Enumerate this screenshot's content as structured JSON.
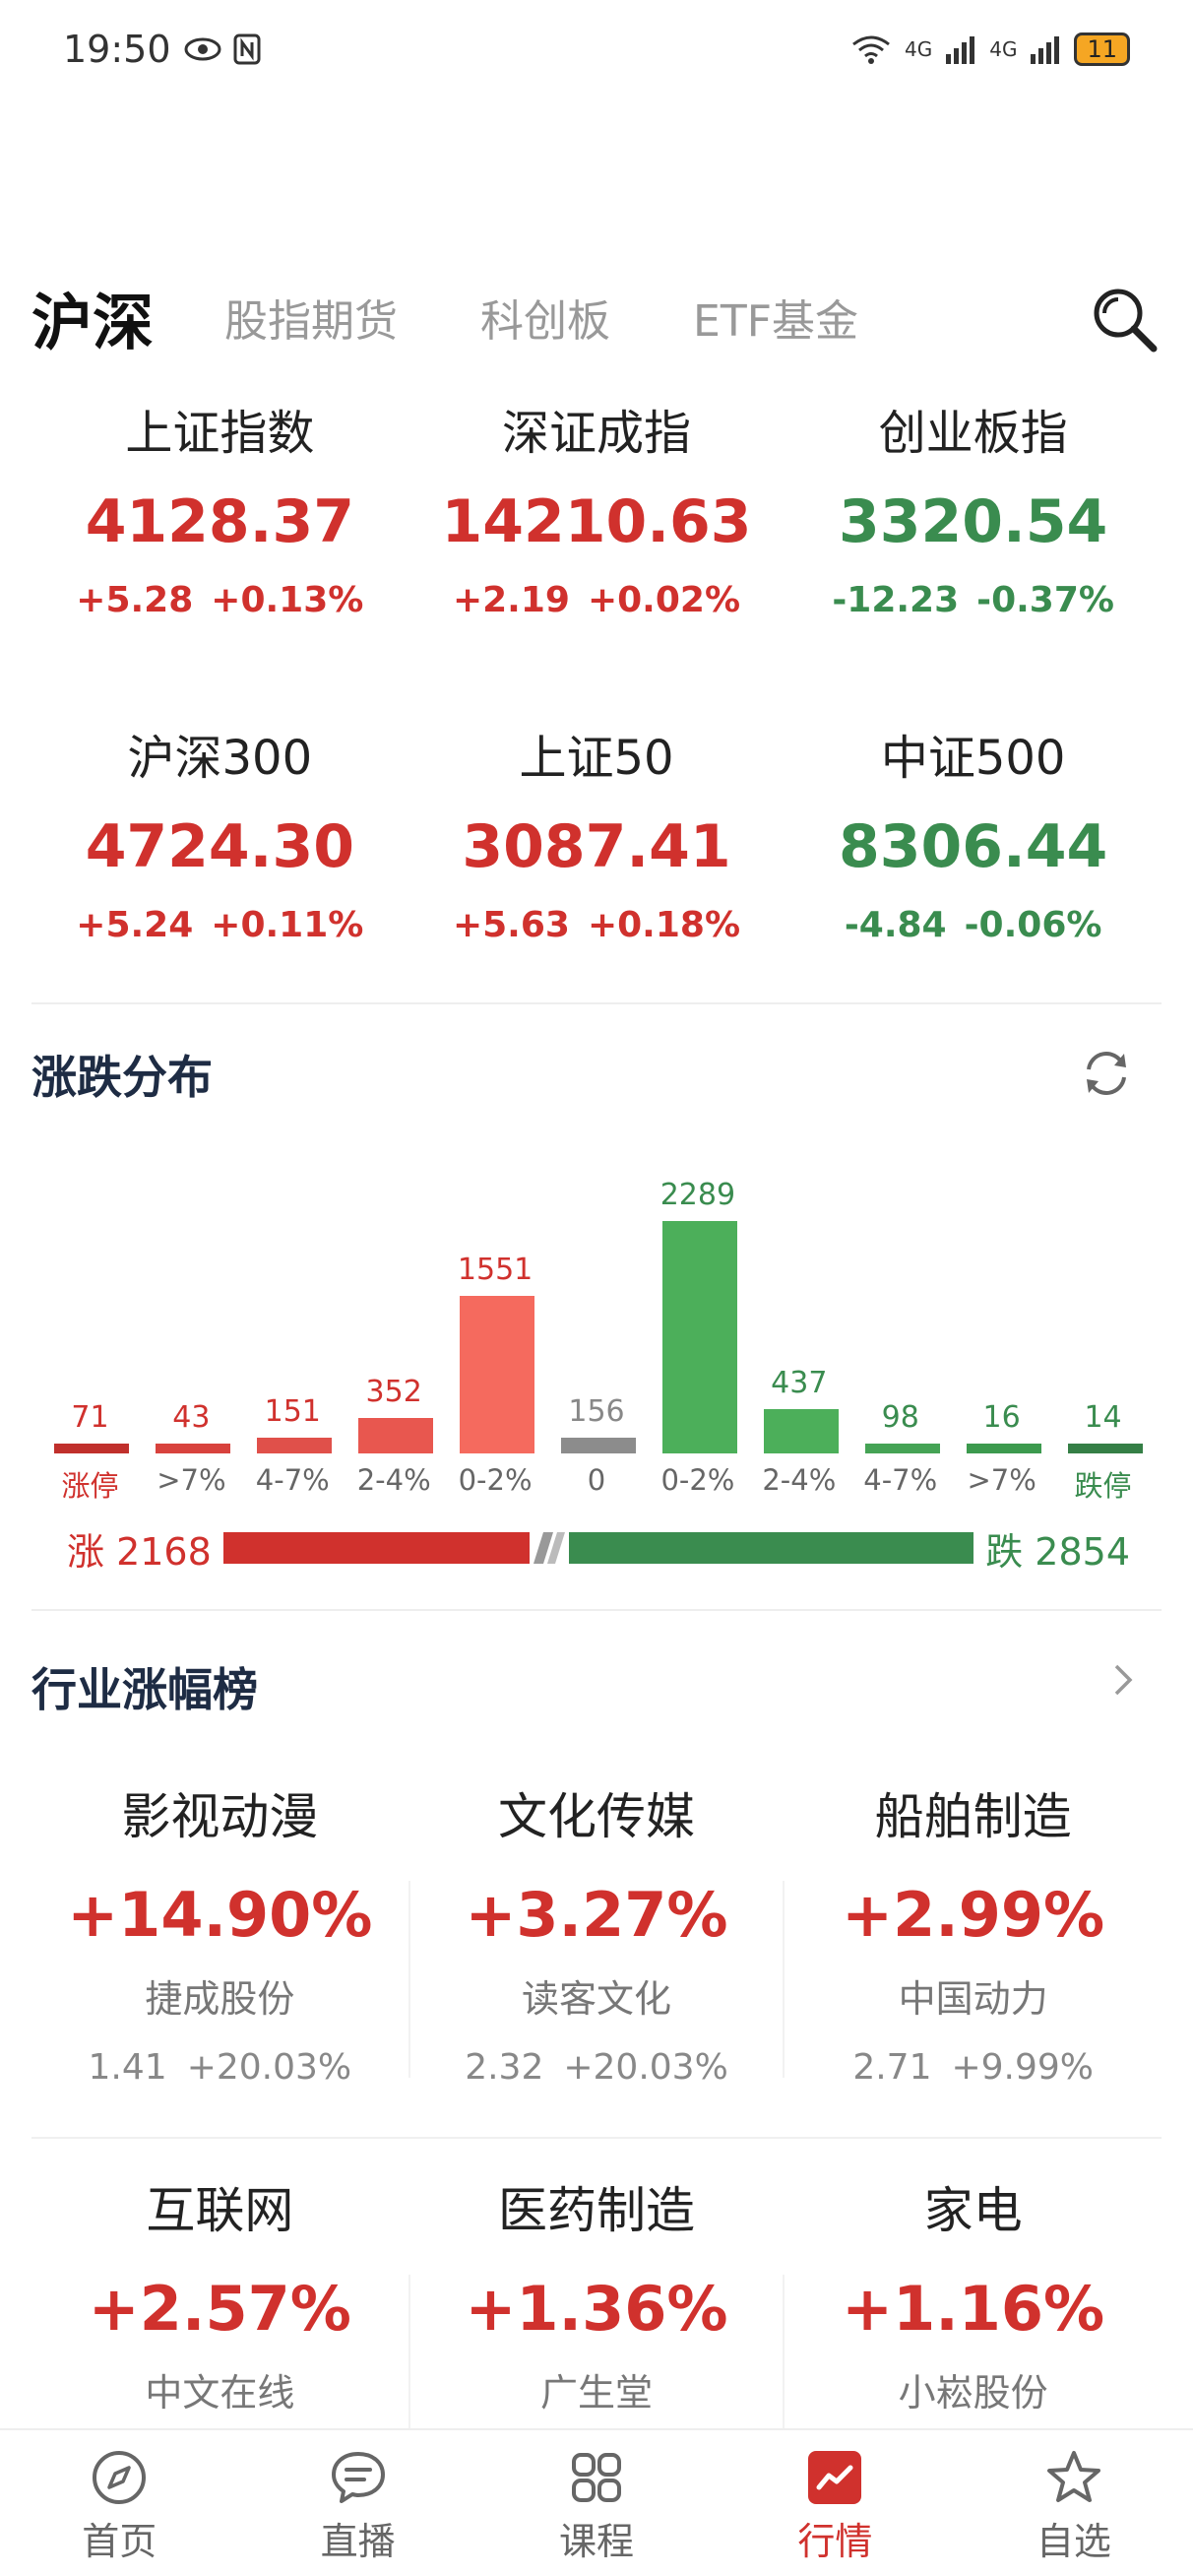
{
  "status_bar": {
    "time": "19:50",
    "network_1": "4G",
    "network_2": "4G",
    "battery": "11"
  },
  "tabs": [
    {
      "label": "沪深",
      "active": true
    },
    {
      "label": "股指期货",
      "active": false
    },
    {
      "label": "科创板",
      "active": false
    },
    {
      "label": "ETF基金",
      "active": false
    }
  ],
  "indices": [
    {
      "name": "上证指数",
      "value": "4128.37",
      "change": "+5.28",
      "pct": "+0.13%",
      "direction": "up"
    },
    {
      "name": "深证成指",
      "value": "14210.63",
      "change": "+2.19",
      "pct": "+0.02%",
      "direction": "up"
    },
    {
      "name": "创业板指",
      "value": "3320.54",
      "change": "-12.23",
      "pct": "-0.37%",
      "direction": "down"
    },
    {
      "name": "沪深300",
      "value": "4724.30",
      "change": "+5.24",
      "pct": "+0.11%",
      "direction": "up"
    },
    {
      "name": "上证50",
      "value": "3087.41",
      "change": "+5.63",
      "pct": "+0.18%",
      "direction": "up"
    },
    {
      "name": "中证500",
      "value": "8306.44",
      "change": "-4.84",
      "pct": "-0.06%",
      "direction": "down"
    }
  ],
  "distribution": {
    "title": "涨跌分布",
    "up_label": "涨 2168",
    "down_label": "跌 2854",
    "up_total": 2168,
    "down_total": 2854
  },
  "chart_data": {
    "type": "bar",
    "categories": [
      "涨停",
      ">7%",
      "4-7%",
      "2-4%",
      "0-2%",
      "0",
      "0-2%",
      "2-4%",
      "4-7%",
      ">7%",
      "跌停"
    ],
    "values": [
      71,
      43,
      151,
      352,
      1551,
      156,
      2289,
      437,
      98,
      16,
      14
    ],
    "bar_colors": [
      "#c0302c",
      "#d8423d",
      "#e0504a",
      "#e8574f",
      "#f56a5e",
      "#8c8c8c",
      "#4caf5a",
      "#4caf5a",
      "#45a355",
      "#3c9a4e",
      "#357f46"
    ],
    "value_colors": [
      "#d0312d",
      "#d0312d",
      "#d0312d",
      "#d0312d",
      "#d0312d",
      "#888888",
      "#3a8c4f",
      "#3a8c4f",
      "#3a8c4f",
      "#3a8c4f",
      "#3a8c4f"
    ],
    "label_colors": [
      "#d0312d",
      "#666666",
      "#666666",
      "#666666",
      "#666666",
      "#666666",
      "#666666",
      "#666666",
      "#666666",
      "#666666",
      "#3a8c4f"
    ],
    "title": "",
    "xlabel": "",
    "ylabel": ""
  },
  "industry": {
    "title": "行业涨幅榜",
    "items": [
      {
        "name": "影视动漫",
        "pct": "+14.90%",
        "stock": "捷成股份",
        "price": "1.41",
        "stock_pct": "+20.03%"
      },
      {
        "name": "文化传媒",
        "pct": "+3.27%",
        "stock": "读客文化",
        "price": "2.32",
        "stock_pct": "+20.03%"
      },
      {
        "name": "船舶制造",
        "pct": "+2.99%",
        "stock": "中国动力",
        "price": "2.71",
        "stock_pct": "+9.99%"
      },
      {
        "name": "互联网",
        "pct": "+2.57%",
        "stock": "中文在线"
      },
      {
        "name": "医药制造",
        "pct": "+1.36%",
        "stock": "广生堂"
      },
      {
        "name": "家电",
        "pct": "+1.16%",
        "stock": "小崧股份"
      }
    ]
  },
  "bottom_nav": [
    {
      "label": "首页",
      "icon": "compass-icon",
      "active": false
    },
    {
      "label": "直播",
      "icon": "chat-bubble-icon",
      "active": false
    },
    {
      "label": "课程",
      "icon": "grid-icon",
      "active": false
    },
    {
      "label": "行情",
      "icon": "trend-chart-icon",
      "active": true
    },
    {
      "label": "自选",
      "icon": "star-icon",
      "active": false
    }
  ],
  "colors": {
    "up": "#d0312d",
    "down": "#3a8c4f",
    "flat": "#8c8c8c"
  }
}
